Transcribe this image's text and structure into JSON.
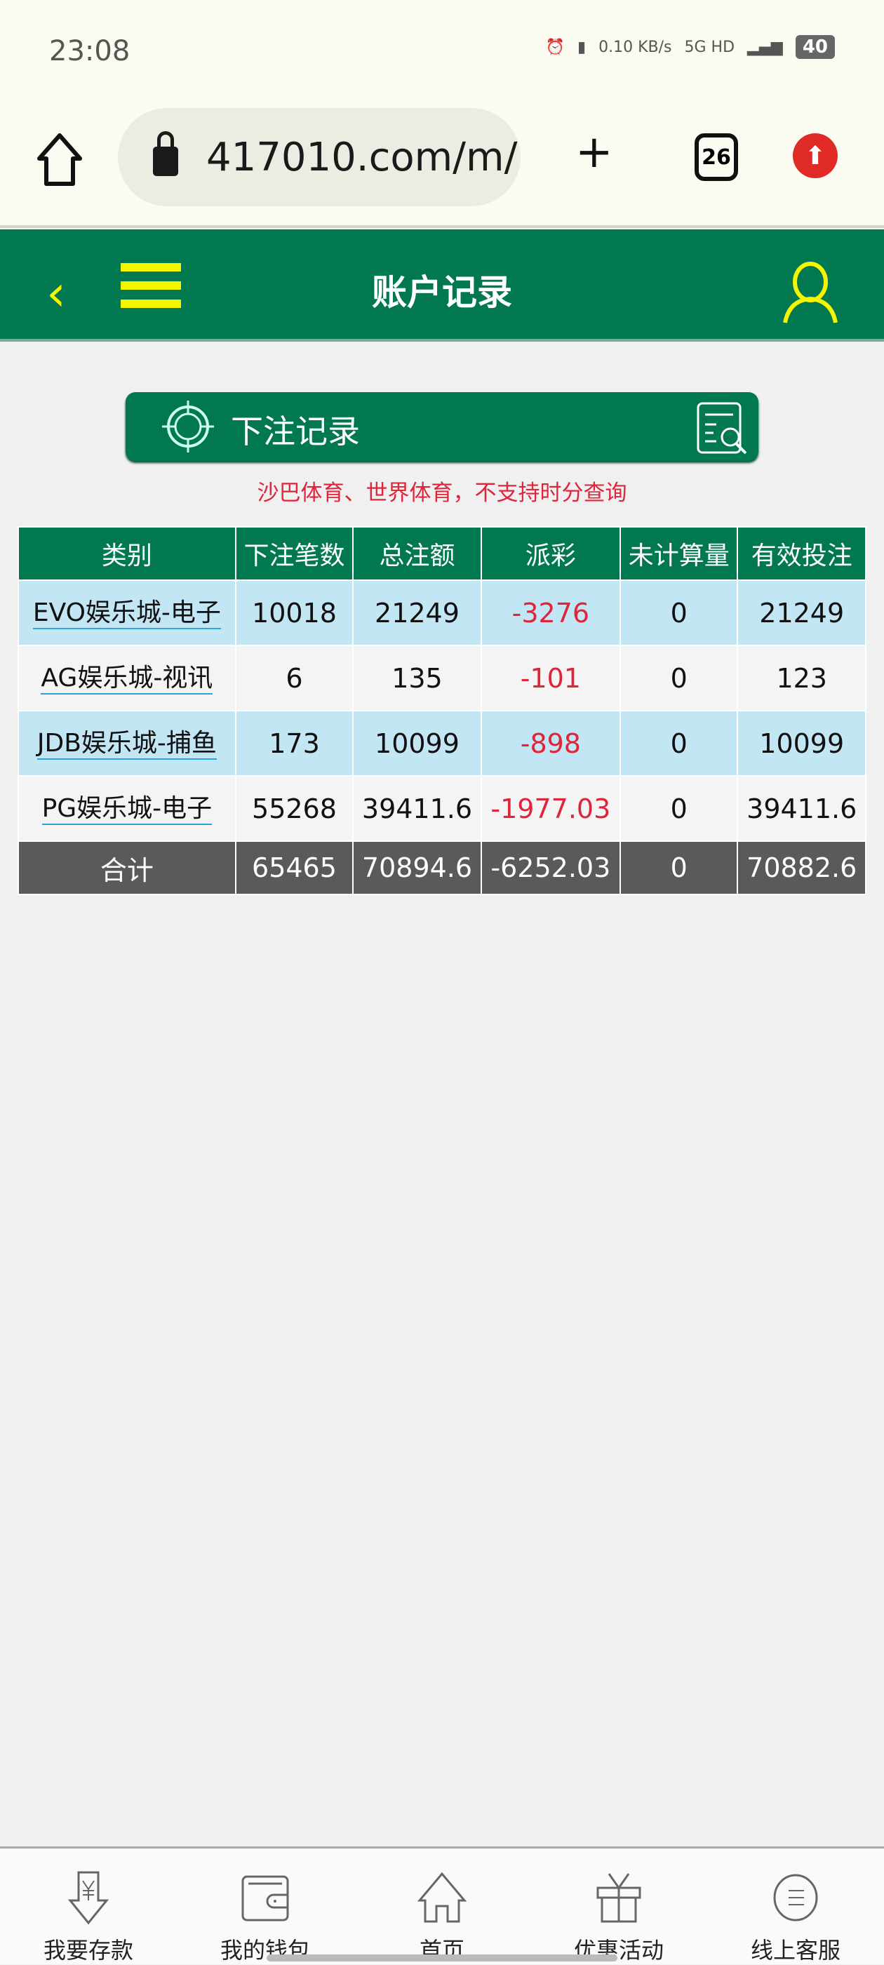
{
  "status_bar": {
    "time": "23:08",
    "speed": "0.10 KB/s",
    "network": "5G HD",
    "battery": "40"
  },
  "browser": {
    "url": "417010.com/m/",
    "tab_count": "26"
  },
  "header": {
    "title": "账户记录"
  },
  "record_button": {
    "label": "下注记录"
  },
  "note": "沙巴体育、世界体育，不支持时分查询",
  "table": {
    "headers": [
      "类别",
      "下注笔数",
      "总注额",
      "派彩",
      "未计算量",
      "有效投注"
    ],
    "rows": [
      {
        "category": "EVO娱乐城-电子",
        "count": "10018",
        "total": "21249",
        "payout": "-3276",
        "unsettled": "0",
        "valid": "21249"
      },
      {
        "category": "AG娱乐城-视讯",
        "count": "6",
        "total": "135",
        "payout": "-101",
        "unsettled": "0",
        "valid": "123"
      },
      {
        "category": "JDB娱乐城-捕鱼",
        "count": "173",
        "total": "10099",
        "payout": "-898",
        "unsettled": "0",
        "valid": "10099"
      },
      {
        "category": "PG娱乐城-电子",
        "count": "55268",
        "total": "39411.6",
        "payout": "-1977.03",
        "unsettled": "0",
        "valid": "39411.6"
      }
    ],
    "totals": {
      "label": "合计",
      "count": "65465",
      "total": "70894.6",
      "payout": "-6252.03",
      "unsettled": "0",
      "valid": "70882.6"
    }
  },
  "nav": [
    {
      "label": "我要存款",
      "icon": "deposit-icon"
    },
    {
      "label": "我的钱包",
      "icon": "wallet-icon"
    },
    {
      "label": "首页",
      "icon": "home-icon"
    },
    {
      "label": "优惠活动",
      "icon": "gift-icon"
    },
    {
      "label": "线上客服",
      "icon": "support-icon"
    }
  ],
  "colors": {
    "primary": "#027851",
    "accent": "#f5f500",
    "negative": "#e0243a",
    "row_highlight": "#c3e6f5"
  }
}
